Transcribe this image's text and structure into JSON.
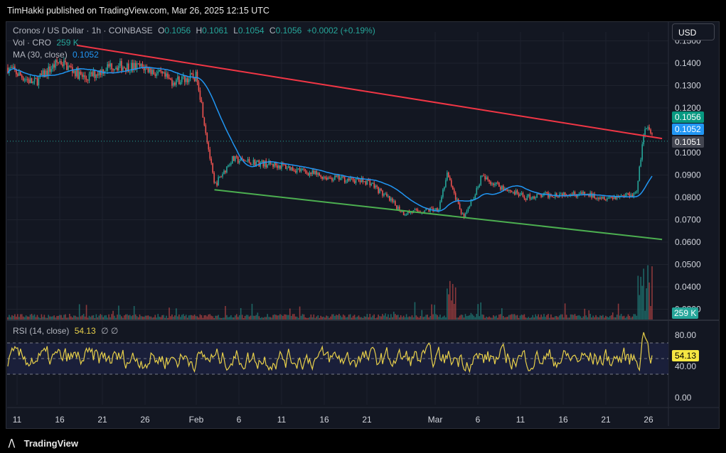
{
  "header": {
    "published": "TimHakki published on TradingView.com, Mar 26, 2025 12:15 UTC"
  },
  "legend": {
    "symbol": "Cronos / US Dollar · 1h · COINBASE",
    "o_label": "O",
    "o_val": "0.1056",
    "h_label": "H",
    "h_val": "0.1061",
    "l_label": "L",
    "l_val": "0.1054",
    "c_label": "C",
    "c_val": "0.1056",
    "change": "+0.0002 (+0.19%)",
    "vol_label": "Vol · CRO",
    "vol_val": "259 K",
    "ma_label": "MA (30, close)",
    "ma_val": "0.1052",
    "rsi_label": "RSI (14, close)",
    "rsi_val": "54.13",
    "rsi_sym": "∅ ∅"
  },
  "currency_button": "USD",
  "price_axis": [
    "0.1500",
    "0.1400",
    "0.1300",
    "0.1200",
    "0.1000",
    "0.0900",
    "0.0800",
    "0.0700",
    "0.0600",
    "0.0500",
    "0.0400",
    "0.0300"
  ],
  "price_tags": {
    "close": "0.1056",
    "ma": "0.1052",
    "line": "0.1051",
    "vol": "259 K"
  },
  "rsi_axis": [
    "80.00",
    "40.00",
    "0.00"
  ],
  "rsi_tag": "54.13",
  "time_axis": [
    "11",
    "16",
    "21",
    "26",
    "Feb",
    "6",
    "11",
    "16",
    "21",
    "Mar",
    "6",
    "11",
    "16",
    "21",
    "26"
  ],
  "footer": {
    "brand": "TradingView"
  },
  "colors": {
    "up": "#26a69a",
    "down": "#ef5350",
    "ma": "#2962ff",
    "resistance": "#f23645",
    "support": "#4caf50",
    "rsi": "#e8d04a"
  },
  "chart_data": {
    "type": "line",
    "title": "Cronos / US Dollar · 1h · COINBASE",
    "ylim": [
      0.03,
      0.15
    ],
    "price_path": [
      {
        "x": "Jan 10",
        "y": 0.138
      },
      {
        "x": "Jan 13",
        "y": 0.131
      },
      {
        "x": "Jan 16",
        "y": 0.141
      },
      {
        "x": "Jan 19",
        "y": 0.133
      },
      {
        "x": "Jan 22",
        "y": 0.139
      },
      {
        "x": "Jan 26",
        "y": 0.138
      },
      {
        "x": "Jan 29",
        "y": 0.132
      },
      {
        "x": "Feb 1",
        "y": 0.134
      },
      {
        "x": "Feb 3",
        "y": 0.085
      },
      {
        "x": "Feb 5",
        "y": 0.097
      },
      {
        "x": "Feb 11",
        "y": 0.094
      },
      {
        "x": "Feb 16",
        "y": 0.089
      },
      {
        "x": "Feb 21",
        "y": 0.087
      },
      {
        "x": "Feb 25",
        "y": 0.073
      },
      {
        "x": "Mar 1",
        "y": 0.075
      },
      {
        "x": "Mar 2",
        "y": 0.09
      },
      {
        "x": "Mar 4",
        "y": 0.07
      },
      {
        "x": "Mar 6",
        "y": 0.089
      },
      {
        "x": "Mar 11",
        "y": 0.08
      },
      {
        "x": "Mar 16",
        "y": 0.082
      },
      {
        "x": "Mar 21",
        "y": 0.08
      },
      {
        "x": "Mar 24",
        "y": 0.082
      },
      {
        "x": "Mar 25",
        "y": 0.112
      },
      {
        "x": "Mar 26",
        "y": 0.1056
      }
    ],
    "resistance_line": [
      {
        "x": "Jan 18",
        "y": 0.148
      },
      {
        "x": "Mar 27",
        "y": 0.1063
      }
    ],
    "support_line": [
      {
        "x": "Feb 3",
        "y": 0.0834
      },
      {
        "x": "Mar 27",
        "y": 0.0612
      }
    ],
    "rsi": {
      "upper": 70,
      "lower": 30,
      "last": 54.13
    },
    "grid": true
  }
}
